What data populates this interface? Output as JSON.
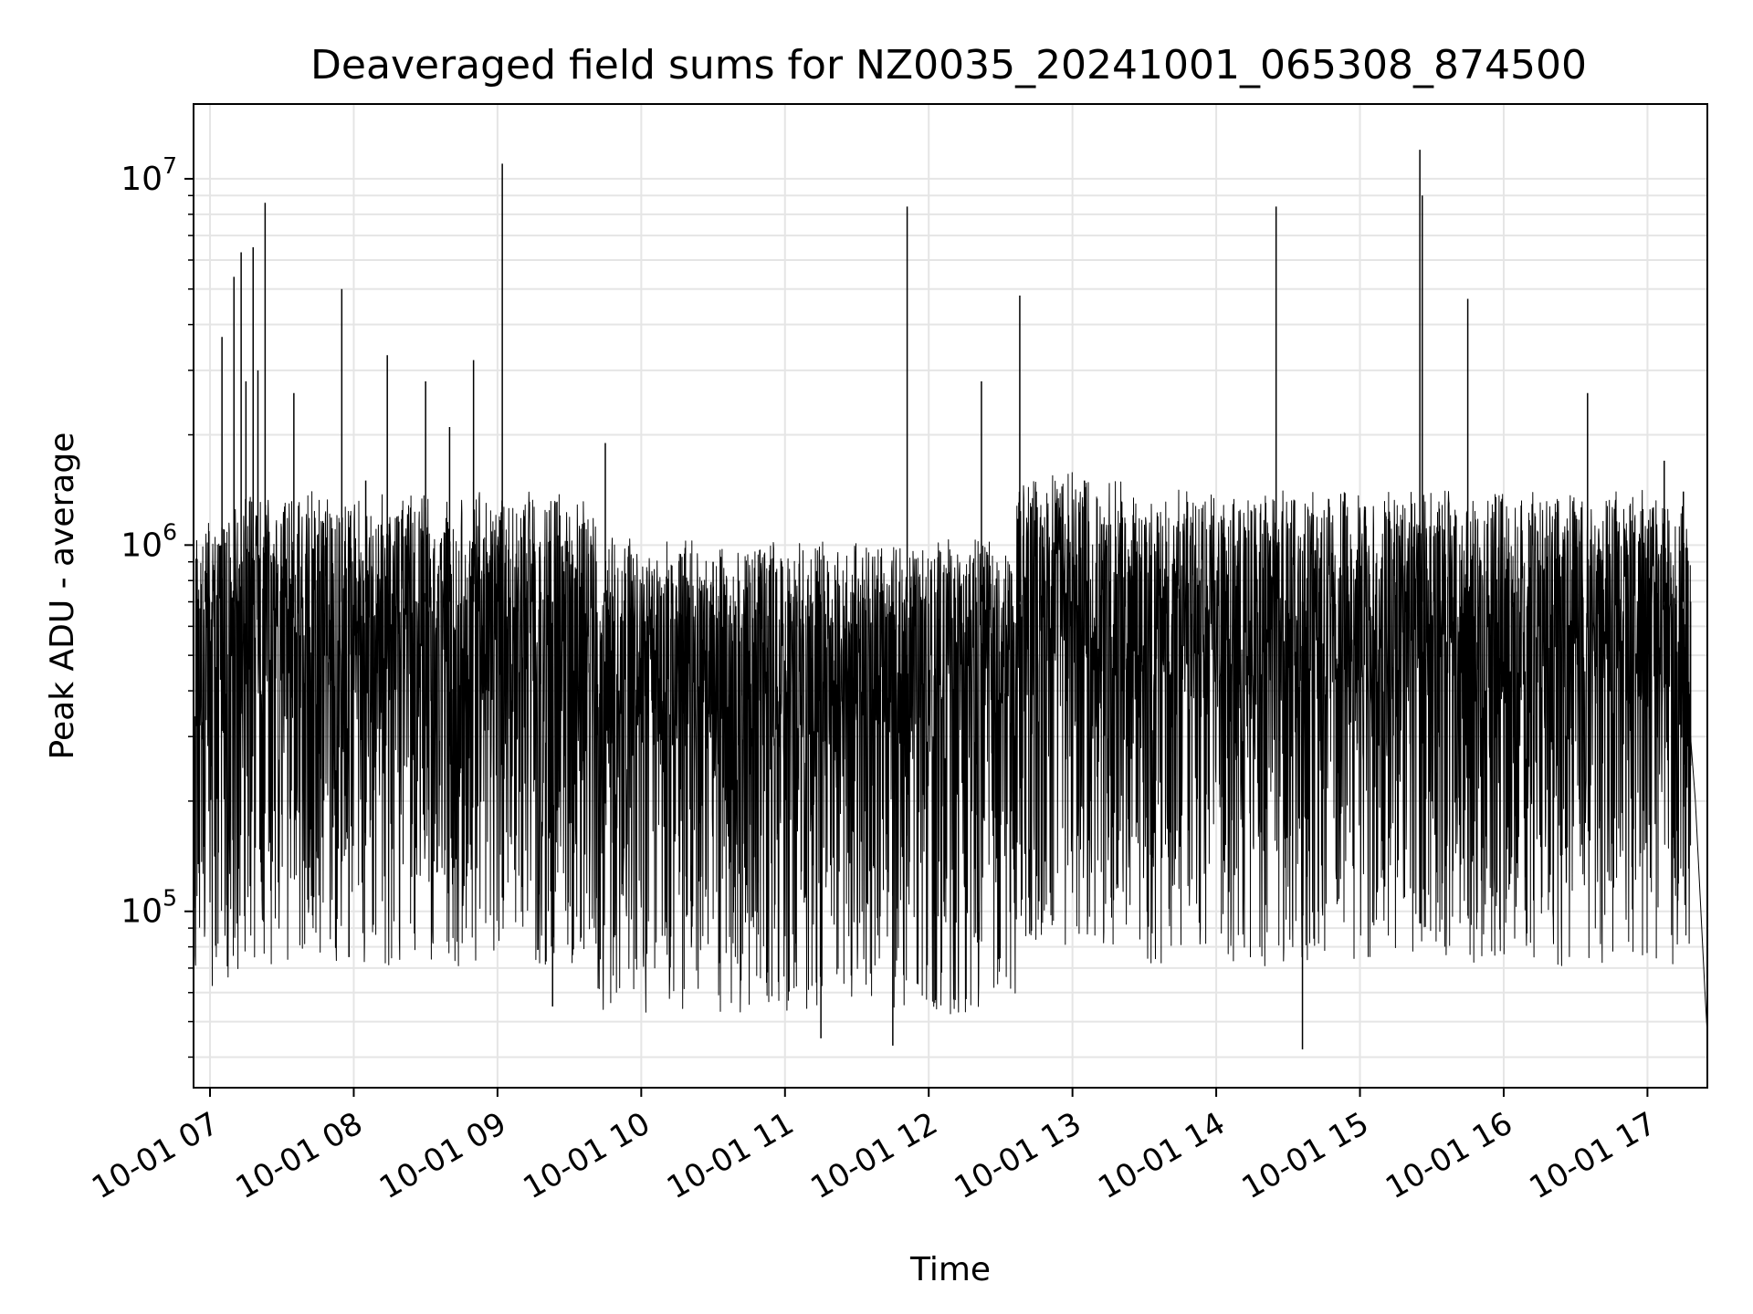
{
  "chart_data": {
    "type": "line",
    "title": "Deaveraged field sums for NZ0035_20241001_065308_874500",
    "xlabel": "Time",
    "ylabel": "Peak ADU - average",
    "yscale": "log",
    "ylim": [
      33000,
      16000000
    ],
    "xlim": [
      "2024-10-01 06:53:08",
      "2024-10-01 17:25:00"
    ],
    "grid": true,
    "line_color": "#000000",
    "grid_color": "#e5e5e5",
    "x_ticks": [
      "10-01 07",
      "10-01 08",
      "10-01 09",
      "10-01 10",
      "10-01 11",
      "10-01 12",
      "10-01 13",
      "10-01 14",
      "10-01 15",
      "10-01 16",
      "10-01 17"
    ],
    "y_ticks": [
      {
        "value": 100000,
        "base": "10",
        "exp": "5"
      },
      {
        "value": 1000000,
        "base": "10",
        "exp": "6"
      },
      {
        "value": 10000000,
        "base": "10",
        "exp": "7"
      }
    ],
    "series": [
      {
        "x": [
          "2024-10-01 06:53",
          "2024-10-01 06:55",
          "2024-10-01 06:58",
          "2024-10-01 07:05",
          "2024-10-01 07:10",
          "2024-10-01 07:13",
          "2024-10-01 07:15",
          "2024-10-01 07:18",
          "2024-10-01 07:20",
          "2024-10-01 07:23",
          "2024-10-01 07:35",
          "2024-10-01 07:55",
          "2024-10-01 07:58",
          "2024-10-01 08:05",
          "2024-10-01 08:14",
          "2024-10-01 08:30",
          "2024-10-01 08:40",
          "2024-10-01 08:50",
          "2024-10-01 09:00",
          "2024-10-01 09:02",
          "2024-10-01 09:23",
          "2024-10-01 09:45",
          "2024-10-01 10:30",
          "2024-10-01 11:05",
          "2024-10-01 11:15",
          "2024-10-01 11:45",
          "2024-10-01 11:51",
          "2024-10-01 12:00",
          "2024-10-01 12:22",
          "2024-10-01 12:38",
          "2024-10-01 13:05",
          "2024-10-01 14:25",
          "2024-10-01 14:36",
          "2024-10-01 15:25",
          "2024-10-01 15:26",
          "2024-10-01 15:45",
          "2024-10-01 16:35",
          "2024-10-01 17:07",
          "2024-10-01 17:15",
          "2024-10-01 17:18",
          "2024-10-01 17:25"
        ],
        "y": [
          500000,
          650000,
          850000,
          3700000,
          5400000,
          6300000,
          2800000,
          6500000,
          3000000,
          8600000,
          2600000,
          5000000,
          75000,
          1500000,
          3300000,
          2800000,
          2100000,
          3200000,
          1000000,
          11000000,
          55000,
          1900000,
          900000,
          600000,
          45000,
          43000,
          8400000,
          700000,
          2800000,
          4800000,
          1500000,
          8400000,
          42000,
          12000000,
          9000000,
          4700000,
          2600000,
          1700000,
          1400000,
          250000,
          46000
        ]
      }
    ]
  }
}
